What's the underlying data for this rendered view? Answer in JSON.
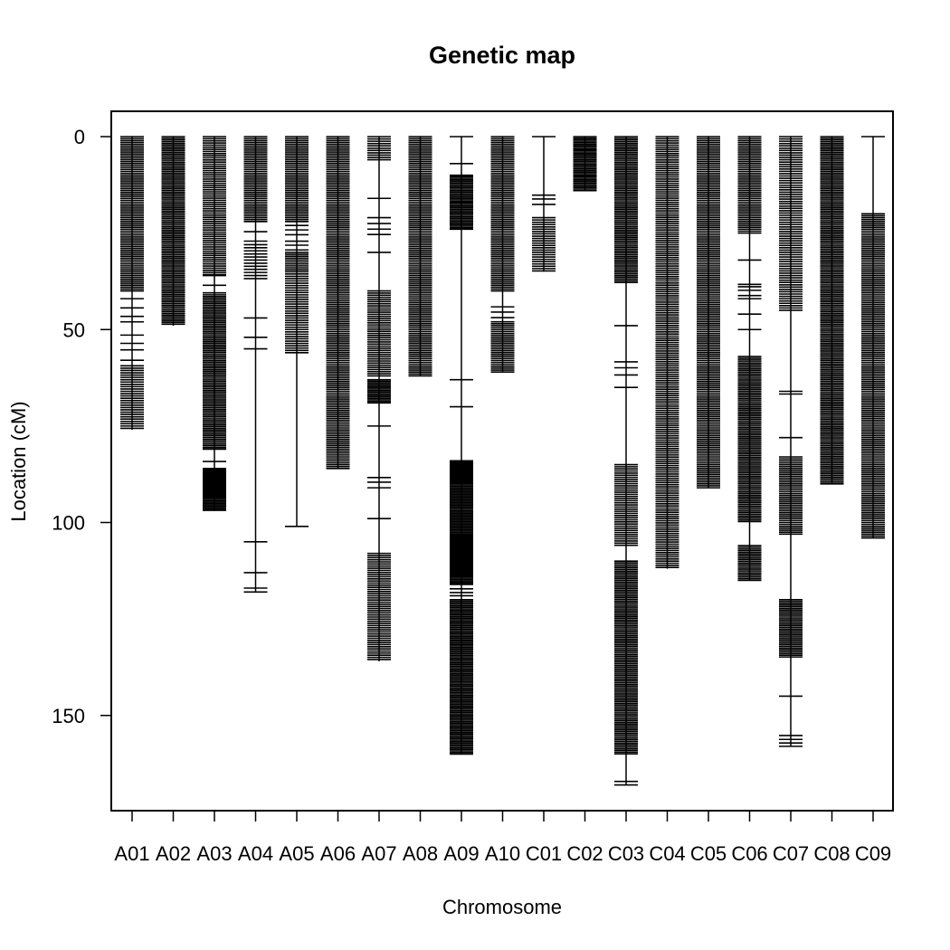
{
  "chart_data": {
    "type": "genetic_map",
    "title": "Genetic map",
    "xlabel": "Chromosome",
    "ylabel": "Location (cM)",
    "ylim": [
      0,
      175
    ],
    "y_reversed": true,
    "y_ticks": [
      0,
      50,
      100,
      150
    ],
    "grid": false,
    "line_color": "#000000",
    "chromosomes": [
      {
        "name": "A01",
        "length": 76,
        "segments": [
          [
            0,
            40,
            0.5
          ],
          [
            42,
            60,
            2.2
          ],
          [
            60,
            76,
            0.6
          ]
        ]
      },
      {
        "name": "A02",
        "length": 49,
        "segments": [
          [
            0,
            49,
            0.45
          ]
        ]
      },
      {
        "name": "A03",
        "length": 97,
        "segments": [
          [
            0,
            36,
            0.55
          ],
          [
            36,
            41,
            2
          ],
          [
            41,
            81,
            0.45
          ],
          [
            81,
            86,
            2.5
          ],
          [
            86,
            97,
            0.35
          ]
        ]
      },
      {
        "name": "A04",
        "length": 118,
        "segments": [
          [
            0,
            22,
            0.5
          ],
          [
            22,
            28,
            2.5
          ],
          [
            28,
            37,
            0.8
          ],
          [
            47,
            47,
            1
          ],
          [
            52,
            52,
            1
          ],
          [
            55,
            55,
            1
          ],
          [
            105,
            105,
            1
          ],
          [
            113,
            113,
            1
          ],
          [
            117,
            118,
            1
          ]
        ]
      },
      {
        "name": "A05",
        "length": 101,
        "segments": [
          [
            0,
            22,
            0.5
          ],
          [
            22,
            30,
            1.2
          ],
          [
            30,
            35,
            0.5
          ],
          [
            35,
            56,
            0.6
          ],
          [
            101,
            101,
            1
          ]
        ]
      },
      {
        "name": "A06",
        "length": 86,
        "segments": [
          [
            0,
            86,
            0.5
          ]
        ]
      },
      {
        "name": "A07",
        "length": 136,
        "segments": [
          [
            0,
            6,
            0.6
          ],
          [
            16,
            16,
            1
          ],
          [
            21,
            26,
            1.5
          ],
          [
            30,
            30,
            1
          ],
          [
            40,
            62,
            0.55
          ],
          [
            63,
            69,
            0.4
          ],
          [
            75,
            75,
            1
          ],
          [
            88,
            91,
            1.5
          ],
          [
            99,
            99,
            1
          ],
          [
            108,
            136,
            0.55
          ]
        ]
      },
      {
        "name": "A08",
        "length": 62,
        "segments": [
          [
            0,
            62,
            0.5
          ]
        ]
      },
      {
        "name": "A09",
        "length": 160,
        "segments": [
          [
            0,
            0,
            1
          ],
          [
            7,
            7,
            1
          ],
          [
            10,
            24,
            0.4
          ],
          [
            63,
            63,
            1
          ],
          [
            70,
            70,
            1
          ],
          [
            84,
            116,
            0.35
          ],
          [
            116,
            120,
            1
          ],
          [
            120,
            160,
            0.4
          ]
        ]
      },
      {
        "name": "A10",
        "length": 61,
        "segments": [
          [
            0,
            40,
            0.5
          ],
          [
            44,
            47,
            1.5
          ],
          [
            48,
            61,
            0.5
          ]
        ]
      },
      {
        "name": "C01",
        "length": 35,
        "segments": [
          [
            0,
            0,
            1
          ],
          [
            15,
            18,
            1.5
          ],
          [
            21,
            35,
            0.6
          ]
        ]
      },
      {
        "name": "C02",
        "length": 14,
        "segments": [
          [
            0,
            14,
            0.4
          ]
        ]
      },
      {
        "name": "C03",
        "length": 168,
        "segments": [
          [
            0,
            38,
            0.45
          ],
          [
            49,
            49,
            1
          ],
          [
            58,
            62,
            2
          ],
          [
            65,
            65,
            1
          ],
          [
            85,
            106,
            0.55
          ],
          [
            110,
            160,
            0.45
          ],
          [
            167,
            168,
            1
          ]
        ]
      },
      {
        "name": "C04",
        "length": 112,
        "segments": [
          [
            0,
            112,
            0.55
          ]
        ]
      },
      {
        "name": "C05",
        "length": 91,
        "segments": [
          [
            0,
            91,
            0.5
          ]
        ]
      },
      {
        "name": "C06",
        "length": 115,
        "segments": [
          [
            0,
            25,
            0.5
          ],
          [
            32,
            32,
            1
          ],
          [
            38,
            42,
            1
          ],
          [
            46,
            46,
            1
          ],
          [
            50,
            50,
            1
          ],
          [
            57,
            100,
            0.45
          ],
          [
            106,
            115,
            0.45
          ]
        ]
      },
      {
        "name": "C07",
        "length": 158,
        "segments": [
          [
            0,
            45,
            0.6
          ],
          [
            66,
            67,
            1
          ],
          [
            78,
            78,
            1
          ],
          [
            83,
            103,
            0.5
          ],
          [
            120,
            135,
            0.45
          ],
          [
            145,
            145,
            1
          ],
          [
            155,
            158,
            1
          ]
        ]
      },
      {
        "name": "C08",
        "length": 90,
        "segments": [
          [
            0,
            90,
            0.45
          ]
        ]
      },
      {
        "name": "C09",
        "length": 104,
        "segments": [
          [
            0,
            0,
            1
          ],
          [
            20,
            104,
            0.5
          ]
        ]
      }
    ]
  }
}
